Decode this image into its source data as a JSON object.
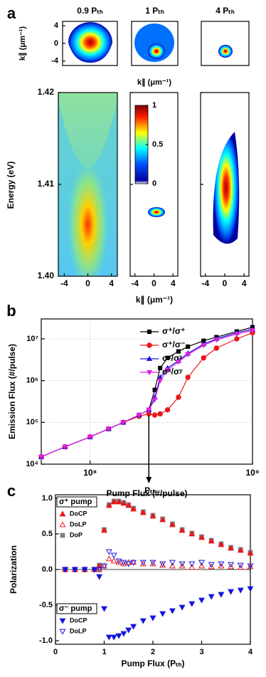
{
  "panel_a": {
    "label": "a",
    "titles": [
      "0.9 Pₜₕ",
      "1 Pₜₕ",
      "4 Pₜₕ"
    ],
    "k_label": "k∥ (μm⁻¹)",
    "energy_label": "Energy (eV)",
    "xlim": [
      -5,
      5
    ],
    "klim": [
      -5,
      5
    ],
    "kticks": [
      -4,
      0,
      4
    ],
    "elim": [
      1.4,
      1.42
    ],
    "eticks": [
      1.42,
      1.41,
      {
        "value": 1.4,
        "label": "1.40"
      }
    ],
    "clim": [
      0,
      1
    ],
    "cticks": [
      1,
      0.5,
      0
    ]
  },
  "chart_data": [
    {
      "type": "line",
      "panel_label": "b",
      "x_label": "Pump Flux (#/pulse)",
      "y_label": "Emission Flux (#/pulse)",
      "log_x": true,
      "log_y": true,
      "grid": true,
      "xlim": [
        50000000,
        1000000000
      ],
      "ylim": [
        10000,
        30000000
      ],
      "xticks": [
        {
          "value": 100000000,
          "label": "10⁸"
        },
        {
          "value": 1000000000,
          "label": "10⁹"
        }
      ],
      "yticks": [
        {
          "value": 10000,
          "label": "10⁴"
        },
        {
          "value": 100000,
          "label": "10⁵"
        },
        {
          "value": 1000000,
          "label": "10⁶"
        },
        {
          "value": 10000000,
          "label": "10⁷"
        }
      ],
      "annotation": {
        "text": "Pₜₕ",
        "x": 230000000
      },
      "x": [
        50000000,
        70000000,
        100000000,
        130000000,
        160000000,
        200000000,
        230000000,
        250000000,
        270000000,
        300000000,
        350000000,
        400000000,
        500000000,
        600000000,
        800000000,
        1000000000
      ],
      "series": [
        {
          "name": "σ⁺/σ⁺",
          "color": "#000000",
          "marker": "square",
          "values": [
            15000,
            26000,
            45000,
            70000,
            100000,
            150000,
            200000,
            600000,
            2000000,
            3500000,
            5000000,
            6500000,
            9000000,
            11000000,
            15000000,
            19000000
          ]
        },
        {
          "name": "σ⁺/σ⁻",
          "color": "#e8171b",
          "marker": "circle",
          "values": [
            15000,
            26000,
            45000,
            70000,
            100000,
            140000,
            160000,
            150000,
            160000,
            200000,
            400000,
            1200000,
            3500000,
            6000000,
            10000000,
            14000000
          ]
        },
        {
          "name": "σˣ/σˣ",
          "color": "#1414e0",
          "marker": "up",
          "values": [
            15000,
            26000,
            45000,
            70000,
            100000,
            150000,
            200000,
            400000,
            1200000,
            2000000,
            3000000,
            4500000,
            7500000,
            10000000,
            14000000,
            17000000
          ]
        },
        {
          "name": "σˣ/σʸ",
          "color": "#e020e0",
          "marker": "down",
          "values": [
            15000,
            26000,
            45000,
            70000,
            100000,
            150000,
            200000,
            350000,
            1000000,
            1800000,
            2800000,
            4200000,
            7000000,
            9500000,
            13000000,
            16000000
          ]
        }
      ]
    },
    {
      "type": "scatter",
      "panel_label": "c",
      "x_label": "Pump Flux (Pₜₕ)",
      "y_label": "Polarization",
      "xlim": [
        0,
        4
      ],
      "ylim": [
        -1.05,
        1.05
      ],
      "xticks": [
        0,
        1,
        2,
        3,
        4
      ],
      "yticks": [
        {
          "value": 1,
          "label": "1.0"
        },
        0.5,
        {
          "value": 0,
          "label": "0.0"
        },
        -0.5,
        {
          "value": -1,
          "label": "-1.0"
        }
      ],
      "legend_titles": [
        "σ⁺ pump",
        "σ⁻ pump"
      ],
      "x": [
        0.2,
        0.4,
        0.6,
        0.8,
        0.9,
        1.0,
        1.1,
        1.2,
        1.3,
        1.4,
        1.5,
        1.6,
        1.8,
        2.0,
        2.2,
        2.4,
        2.6,
        2.8,
        3.0,
        3.2,
        3.4,
        3.6,
        3.8,
        4.0
      ],
      "series": [
        {
          "name": "DoP",
          "legend_group": 0,
          "color": "#808080",
          "marker": "square",
          "filled": true,
          "values": [
            0,
            0,
            0,
            0,
            0.06,
            0.56,
            0.91,
            0.96,
            0.96,
            0.94,
            0.91,
            0.86,
            0.81,
            0.76,
            0.71,
            0.64,
            0.56,
            0.51,
            0.46,
            0.41,
            0.36,
            0.31,
            0.28,
            0.24
          ]
        },
        {
          "name": "DoCP",
          "legend_group": 0,
          "color": "#e8171b",
          "marker": "up",
          "filled": true,
          "values": [
            0,
            0,
            0,
            0,
            0.05,
            0.55,
            0.9,
            0.95,
            0.95,
            0.93,
            0.9,
            0.85,
            0.8,
            0.75,
            0.7,
            0.63,
            0.55,
            0.5,
            0.45,
            0.4,
            0.35,
            0.3,
            0.27,
            0.23
          ]
        },
        {
          "name": "DoLP",
          "legend_group": 0,
          "color": "#e8171b",
          "marker": "up",
          "filled": false,
          "values": [
            0,
            0,
            0,
            0,
            0,
            0.05,
            0.15,
            0.12,
            0.1,
            0.08,
            0.1,
            0.1,
            0.08,
            0.08,
            0.06,
            0.05,
            0.05,
            0.03,
            0.05,
            0.04,
            0.05,
            0.04,
            0.03,
            0.04
          ]
        },
        {
          "name": "DoCP",
          "legend_group": 1,
          "color": "#1414e0",
          "marker": "down",
          "filled": true,
          "values": [
            0,
            0,
            0,
            0,
            -0.1,
            -0.55,
            -0.95,
            -0.95,
            -0.93,
            -0.9,
            -0.85,
            -0.8,
            -0.72,
            -0.68,
            -0.62,
            -0.58,
            -0.53,
            -0.48,
            -0.43,
            -0.38,
            -0.35,
            -0.31,
            -0.29,
            -0.27
          ]
        },
        {
          "name": "DoLP",
          "legend_group": 1,
          "color": "#1414e0",
          "marker": "down",
          "filled": false,
          "values": [
            0,
            0,
            0,
            0,
            0,
            0.05,
            0.25,
            0.2,
            0.12,
            0.1,
            0.08,
            0.1,
            0.1,
            0.1,
            0.08,
            0.1,
            0.08,
            0.08,
            0.1,
            0.07,
            0.08,
            0.07,
            0.06,
            0.05
          ]
        }
      ]
    }
  ]
}
